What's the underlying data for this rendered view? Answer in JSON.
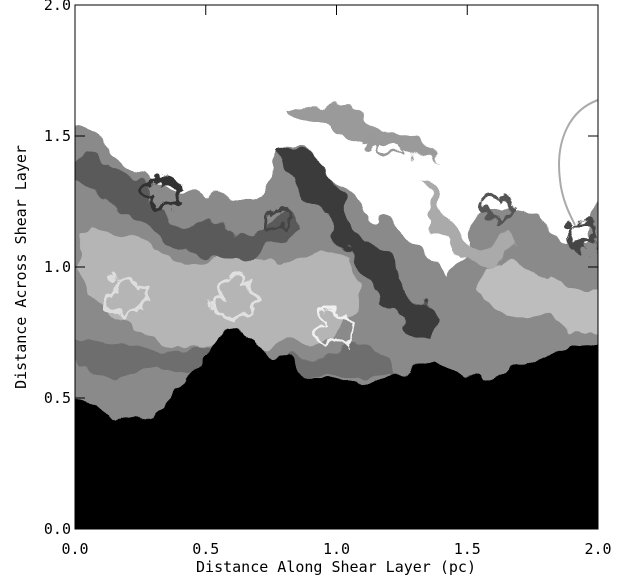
{
  "chart_data": {
    "type": "image",
    "xlabel": "Distance Along Shear Layer (pc)",
    "ylabel": "Distance Across Shear Layer",
    "xlim": [
      0,
      2
    ],
    "ylim": [
      0,
      2
    ],
    "xticks": [
      {
        "value": 0,
        "label": "0.0"
      },
      0.5,
      {
        "value": 1,
        "label": "1.0"
      },
      1.5,
      {
        "value": 2,
        "label": "2.0"
      }
    ],
    "yticks": [
      {
        "value": 0,
        "label": "0.0"
      },
      0.5,
      {
        "value": 1,
        "label": "1.0"
      },
      1.5,
      {
        "value": 2,
        "label": "2.0"
      }
    ]
  }
}
